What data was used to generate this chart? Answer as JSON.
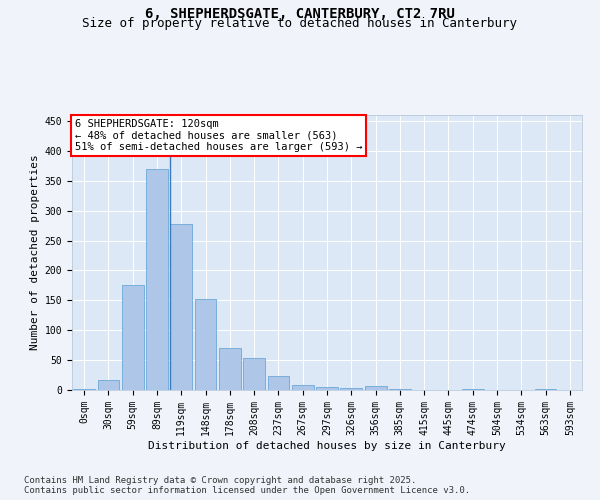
{
  "title_line1": "6, SHEPHERDSGATE, CANTERBURY, CT2 7RU",
  "title_line2": "Size of property relative to detached houses in Canterbury",
  "xlabel": "Distribution of detached houses by size in Canterbury",
  "ylabel": "Number of detached properties",
  "bar_labels": [
    "0sqm",
    "30sqm",
    "59sqm",
    "89sqm",
    "119sqm",
    "148sqm",
    "178sqm",
    "208sqm",
    "237sqm",
    "267sqm",
    "297sqm",
    "326sqm",
    "356sqm",
    "385sqm",
    "415sqm",
    "445sqm",
    "474sqm",
    "504sqm",
    "534sqm",
    "563sqm",
    "593sqm"
  ],
  "bar_values": [
    2,
    17,
    175,
    370,
    278,
    152,
    70,
    54,
    23,
    8,
    5,
    4,
    6,
    2,
    0,
    0,
    1,
    0,
    0,
    2,
    0
  ],
  "bar_color": "#aec6e8",
  "bar_edge_color": "#5a9fd4",
  "annotation_box_text": "6 SHEPHERDSGATE: 120sqm\n← 48% of detached houses are smaller (563)\n51% of semi-detached houses are larger (593) →",
  "ylim": [
    0,
    460
  ],
  "yticks": [
    0,
    50,
    100,
    150,
    200,
    250,
    300,
    350,
    400,
    450
  ],
  "bg_color": "#dce8f5",
  "grid_color": "#ffffff",
  "footer_text": "Contains HM Land Registry data © Crown copyright and database right 2025.\nContains public sector information licensed under the Open Government Licence v3.0.",
  "title_fontsize": 10,
  "subtitle_fontsize": 9,
  "axis_label_fontsize": 8,
  "tick_fontsize": 7,
  "annotation_fontsize": 7.5,
  "footer_fontsize": 6.5
}
